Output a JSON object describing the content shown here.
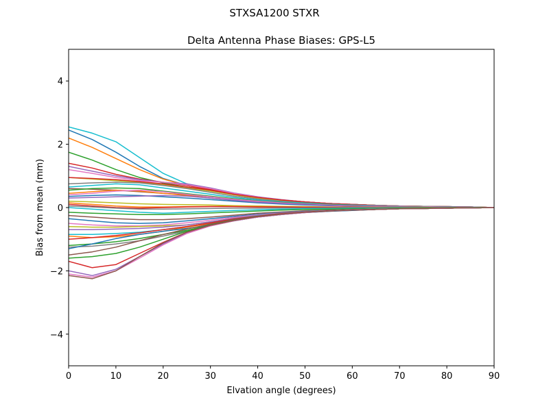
{
  "chart_data": {
    "type": "line",
    "suptitle": "STXSA1200        STXR",
    "title": "Delta Antenna Phase Biases: GPS-L5",
    "xlabel": "Elvation angle (degrees)",
    "ylabel": "Bias from mean (mm)",
    "xlim": [
      0,
      90
    ],
    "ylim": [
      -5,
      5
    ],
    "xticks": [
      0,
      10,
      20,
      30,
      40,
      50,
      60,
      70,
      80,
      90
    ],
    "xtick_labels": [
      "0",
      "10",
      "20",
      "30",
      "40",
      "50",
      "60",
      "70",
      "80",
      "90"
    ],
    "yticks": [
      -4,
      -2,
      0,
      2,
      4
    ],
    "ytick_labels": [
      "−4",
      "−2",
      "0",
      "2",
      "4"
    ],
    "grid": false,
    "x": [
      0,
      5,
      10,
      15,
      20,
      25,
      30,
      35,
      40,
      45,
      50,
      55,
      60,
      65,
      70,
      75,
      80,
      85,
      90
    ],
    "series": [
      {
        "color": "#17becf",
        "values": [
          2.55,
          2.35,
          2.08,
          1.58,
          1.08,
          0.75,
          0.55,
          0.4,
          0.3,
          0.22,
          0.17,
          0.13,
          0.1,
          0.07,
          0.05,
          0.04,
          0.03,
          0.02,
          0.0
        ]
      },
      {
        "color": "#1f77b4",
        "values": [
          2.45,
          2.15,
          1.75,
          1.3,
          0.92,
          0.7,
          0.55,
          0.42,
          0.32,
          0.24,
          0.18,
          0.13,
          0.1,
          0.07,
          0.05,
          0.04,
          0.03,
          0.02,
          0.0
        ]
      },
      {
        "color": "#ff7f0e",
        "values": [
          2.2,
          1.9,
          1.55,
          1.2,
          0.9,
          0.7,
          0.55,
          0.42,
          0.32,
          0.24,
          0.18,
          0.13,
          0.1,
          0.07,
          0.05,
          0.04,
          0.03,
          0.02,
          0.0
        ]
      },
      {
        "color": "#2ca02c",
        "values": [
          1.75,
          1.5,
          1.2,
          0.95,
          0.78,
          0.65,
          0.55,
          0.42,
          0.32,
          0.24,
          0.18,
          0.13,
          0.1,
          0.07,
          0.05,
          0.04,
          0.03,
          0.02,
          0.0
        ]
      },
      {
        "color": "#d62728",
        "values": [
          1.4,
          1.25,
          1.05,
          0.9,
          0.8,
          0.7,
          0.58,
          0.44,
          0.32,
          0.24,
          0.18,
          0.13,
          0.1,
          0.07,
          0.05,
          0.04,
          0.03,
          0.02,
          0.0
        ]
      },
      {
        "color": "#9467bd",
        "values": [
          1.3,
          1.15,
          1.0,
          0.88,
          0.8,
          0.75,
          0.62,
          0.46,
          0.34,
          0.25,
          0.18,
          0.13,
          0.1,
          0.07,
          0.05,
          0.04,
          0.03,
          0.02,
          0.0
        ]
      },
      {
        "color": "#e377c2",
        "values": [
          1.2,
          1.08,
          0.95,
          0.85,
          0.8,
          0.72,
          0.6,
          0.45,
          0.33,
          0.24,
          0.18,
          0.13,
          0.1,
          0.07,
          0.05,
          0.04,
          0.03,
          0.02,
          0.0
        ]
      },
      {
        "color": "#bcbd22",
        "values": [
          0.95,
          0.9,
          0.85,
          0.8,
          0.72,
          0.62,
          0.52,
          0.4,
          0.3,
          0.22,
          0.17,
          0.12,
          0.09,
          0.07,
          0.05,
          0.04,
          0.03,
          0.02,
          0.0
        ]
      },
      {
        "color": "#d62728",
        "values": [
          0.95,
          0.92,
          0.88,
          0.82,
          0.75,
          0.65,
          0.55,
          0.42,
          0.32,
          0.24,
          0.18,
          0.13,
          0.1,
          0.07,
          0.05,
          0.04,
          0.03,
          0.02,
          0.0
        ]
      },
      {
        "color": "#7f7f7f",
        "values": [
          0.75,
          0.78,
          0.8,
          0.78,
          0.7,
          0.6,
          0.48,
          0.36,
          0.27,
          0.2,
          0.15,
          0.11,
          0.08,
          0.06,
          0.05,
          0.04,
          0.03,
          0.02,
          0.0
        ]
      },
      {
        "color": "#17becf",
        "values": [
          0.65,
          0.7,
          0.75,
          0.72,
          0.62,
          0.52,
          0.42,
          0.32,
          0.24,
          0.18,
          0.14,
          0.1,
          0.08,
          0.06,
          0.04,
          0.03,
          0.02,
          0.01,
          0.0
        ]
      },
      {
        "color": "#8c564b",
        "values": [
          0.6,
          0.58,
          0.55,
          0.5,
          0.45,
          0.4,
          0.34,
          0.27,
          0.21,
          0.16,
          0.12,
          0.09,
          0.07,
          0.05,
          0.04,
          0.03,
          0.02,
          0.01,
          0.0
        ]
      },
      {
        "color": "#2ca02c",
        "values": [
          0.55,
          0.6,
          0.62,
          0.6,
          0.52,
          0.44,
          0.36,
          0.28,
          0.21,
          0.16,
          0.12,
          0.09,
          0.07,
          0.05,
          0.04,
          0.03,
          0.02,
          0.01,
          0.0
        ]
      },
      {
        "color": "#ff7f0e",
        "values": [
          0.45,
          0.5,
          0.55,
          0.52,
          0.45,
          0.38,
          0.3,
          0.23,
          0.17,
          0.13,
          0.1,
          0.07,
          0.05,
          0.04,
          0.03,
          0.02,
          0.01,
          0.01,
          0.0
        ]
      },
      {
        "color": "#e377c2",
        "values": [
          0.4,
          0.45,
          0.52,
          0.55,
          0.5,
          0.42,
          0.34,
          0.26,
          0.2,
          0.15,
          0.11,
          0.08,
          0.06,
          0.05,
          0.04,
          0.03,
          0.02,
          0.01,
          0.0
        ]
      },
      {
        "color": "#1f77b4",
        "values": [
          0.35,
          0.38,
          0.4,
          0.38,
          0.34,
          0.3,
          0.25,
          0.2,
          0.15,
          0.11,
          0.08,
          0.06,
          0.05,
          0.04,
          0.03,
          0.02,
          0.01,
          0.01,
          0.0
        ]
      },
      {
        "color": "#9467bd",
        "values": [
          0.3,
          0.32,
          0.34,
          0.36,
          0.38,
          0.36,
          0.3,
          0.23,
          0.17,
          0.13,
          0.1,
          0.07,
          0.05,
          0.04,
          0.03,
          0.02,
          0.01,
          0.01,
          0.0
        ]
      },
      {
        "color": "#bcbd22",
        "values": [
          0.2,
          0.18,
          0.15,
          0.12,
          0.1,
          0.09,
          0.08,
          0.06,
          0.05,
          0.04,
          0.03,
          0.02,
          0.02,
          0.01,
          0.01,
          0.01,
          0.0,
          0.0,
          0.0
        ]
      },
      {
        "color": "#ff7f0e",
        "values": [
          0.15,
          0.1,
          0.05,
          0.02,
          0.02,
          0.03,
          0.04,
          0.04,
          0.03,
          0.02,
          0.02,
          0.01,
          0.01,
          0.01,
          0.0,
          0.0,
          0.0,
          0.0,
          0.0
        ]
      },
      {
        "color": "#d62728",
        "values": [
          0.1,
          0.05,
          0.0,
          -0.02,
          0.0,
          0.02,
          0.03,
          0.03,
          0.02,
          0.02,
          0.01,
          0.01,
          0.01,
          0.0,
          0.0,
          0.0,
          0.0,
          0.0,
          0.0
        ]
      },
      {
        "color": "#7f7f7f",
        "values": [
          0.05,
          0.02,
          -0.02,
          -0.05,
          -0.05,
          -0.04,
          -0.03,
          -0.02,
          -0.02,
          -0.01,
          -0.01,
          -0.01,
          0.0,
          0.0,
          0.0,
          0.0,
          0.0,
          0.0,
          0.0
        ]
      },
      {
        "color": "#17becf",
        "values": [
          0.0,
          -0.05,
          -0.1,
          -0.15,
          -0.18,
          -0.15,
          -0.12,
          -0.09,
          -0.07,
          -0.05,
          -0.04,
          -0.03,
          -0.02,
          -0.02,
          -0.01,
          -0.01,
          -0.01,
          0.0,
          0.0
        ]
      },
      {
        "color": "#2ca02c",
        "values": [
          -0.15,
          -0.18,
          -0.2,
          -0.22,
          -0.22,
          -0.2,
          -0.17,
          -0.14,
          -0.11,
          -0.08,
          -0.06,
          -0.05,
          -0.04,
          -0.03,
          -0.02,
          -0.01,
          -0.01,
          0.0,
          0.0
        ]
      },
      {
        "color": "#8c564b",
        "values": [
          -0.25,
          -0.3,
          -0.35,
          -0.38,
          -0.38,
          -0.35,
          -0.3,
          -0.24,
          -0.18,
          -0.14,
          -0.1,
          -0.08,
          -0.06,
          -0.05,
          -0.04,
          -0.03,
          -0.02,
          -0.01,
          0.0
        ]
      },
      {
        "color": "#1f77b4",
        "values": [
          -0.35,
          -0.42,
          -0.48,
          -0.5,
          -0.48,
          -0.42,
          -0.35,
          -0.28,
          -0.21,
          -0.16,
          -0.12,
          -0.09,
          -0.07,
          -0.05,
          -0.04,
          -0.03,
          -0.02,
          -0.01,
          0.0
        ]
      },
      {
        "color": "#e377c2",
        "values": [
          -0.5,
          -0.55,
          -0.58,
          -0.58,
          -0.55,
          -0.48,
          -0.4,
          -0.31,
          -0.23,
          -0.17,
          -0.13,
          -0.1,
          -0.07,
          -0.05,
          -0.04,
          -0.03,
          -0.02,
          -0.01,
          0.0
        ]
      },
      {
        "color": "#bcbd22",
        "values": [
          -0.6,
          -0.62,
          -0.62,
          -0.6,
          -0.58,
          -0.55,
          -0.45,
          -0.34,
          -0.25,
          -0.18,
          -0.13,
          -0.1,
          -0.07,
          -0.05,
          -0.04,
          -0.03,
          -0.02,
          -0.01,
          0.0
        ]
      },
      {
        "color": "#9467bd",
        "values": [
          -0.7,
          -0.7,
          -0.68,
          -0.66,
          -0.62,
          -0.55,
          -0.45,
          -0.34,
          -0.25,
          -0.18,
          -0.13,
          -0.1,
          -0.07,
          -0.05,
          -0.04,
          -0.03,
          -0.02,
          -0.01,
          0.0
        ]
      },
      {
        "color": "#17becf",
        "values": [
          -0.85,
          -0.85,
          -0.82,
          -0.78,
          -0.7,
          -0.6,
          -0.48,
          -0.36,
          -0.26,
          -0.19,
          -0.14,
          -0.1,
          -0.08,
          -0.06,
          -0.04,
          -0.03,
          -0.02,
          -0.01,
          0.0
        ]
      },
      {
        "color": "#ff7f0e",
        "values": [
          -0.9,
          -0.95,
          -0.92,
          -0.85,
          -0.75,
          -0.62,
          -0.5,
          -0.38,
          -0.28,
          -0.2,
          -0.15,
          -0.11,
          -0.08,
          -0.06,
          -0.04,
          -0.03,
          -0.02,
          -0.01,
          0.0
        ]
      },
      {
        "color": "#d62728",
        "values": [
          -1.0,
          -0.95,
          -0.88,
          -0.8,
          -0.7,
          -0.6,
          -0.48,
          -0.36,
          -0.27,
          -0.19,
          -0.14,
          -0.1,
          -0.08,
          -0.06,
          -0.04,
          -0.03,
          -0.02,
          -0.01,
          0.0
        ]
      },
      {
        "color": "#2ca02c",
        "values": [
          -1.2,
          -1.15,
          -1.08,
          -0.98,
          -0.85,
          -0.72,
          -0.55,
          -0.4,
          -0.29,
          -0.21,
          -0.15,
          -0.11,
          -0.08,
          -0.06,
          -0.04,
          -0.03,
          -0.02,
          -0.01,
          0.0
        ]
      },
      {
        "color": "#7f7f7f",
        "values": [
          -1.25,
          -1.22,
          -1.15,
          -1.05,
          -0.9,
          -0.75,
          -0.58,
          -0.42,
          -0.3,
          -0.22,
          -0.16,
          -0.12,
          -0.09,
          -0.06,
          -0.04,
          -0.03,
          -0.02,
          -0.01,
          0.0
        ]
      },
      {
        "color": "#1f77b4",
        "values": [
          -1.3,
          -1.15,
          -0.98,
          -0.85,
          -0.75,
          -0.66,
          -0.55,
          -0.42,
          -0.3,
          -0.22,
          -0.16,
          -0.12,
          -0.09,
          -0.06,
          -0.04,
          -0.03,
          -0.02,
          -0.01,
          0.0
        ]
      },
      {
        "color": "#8c564b",
        "values": [
          -1.5,
          -1.4,
          -1.25,
          -1.05,
          -0.85,
          -0.68,
          -0.52,
          -0.38,
          -0.28,
          -0.2,
          -0.15,
          -0.11,
          -0.08,
          -0.06,
          -0.04,
          -0.03,
          -0.02,
          -0.01,
          0.0
        ]
      },
      {
        "color": "#2ca02c",
        "values": [
          -1.6,
          -1.55,
          -1.45,
          -1.25,
          -1.0,
          -0.75,
          -0.55,
          -0.4,
          -0.29,
          -0.21,
          -0.15,
          -0.11,
          -0.08,
          -0.06,
          -0.04,
          -0.03,
          -0.02,
          -0.01,
          0.0
        ]
      },
      {
        "color": "#d62728",
        "values": [
          -1.7,
          -1.9,
          -1.8,
          -1.45,
          -1.1,
          -0.78,
          -0.56,
          -0.41,
          -0.29,
          -0.21,
          -0.15,
          -0.11,
          -0.08,
          -0.06,
          -0.04,
          -0.03,
          -0.02,
          -0.01,
          0.0
        ]
      },
      {
        "color": "#9467bd",
        "values": [
          -2.0,
          -2.15,
          -1.95,
          -1.55,
          -1.15,
          -0.8,
          -0.57,
          -0.41,
          -0.3,
          -0.21,
          -0.15,
          -0.11,
          -0.08,
          -0.06,
          -0.04,
          -0.03,
          -0.02,
          -0.01,
          0.0
        ]
      },
      {
        "color": "#e377c2",
        "values": [
          -2.1,
          -2.2,
          -2.0,
          -1.6,
          -1.18,
          -0.82,
          -0.58,
          -0.42,
          -0.3,
          -0.22,
          -0.16,
          -0.11,
          -0.08,
          -0.06,
          -0.04,
          -0.03,
          -0.02,
          -0.01,
          0.0
        ]
      },
      {
        "color": "#8c564b",
        "values": [
          -2.15,
          -2.25,
          -2.0,
          -1.55,
          -1.12,
          -0.78,
          -0.56,
          -0.41,
          -0.29,
          -0.21,
          -0.15,
          -0.11,
          -0.08,
          -0.06,
          -0.04,
          -0.03,
          -0.02,
          -0.01,
          0.0
        ]
      }
    ]
  }
}
